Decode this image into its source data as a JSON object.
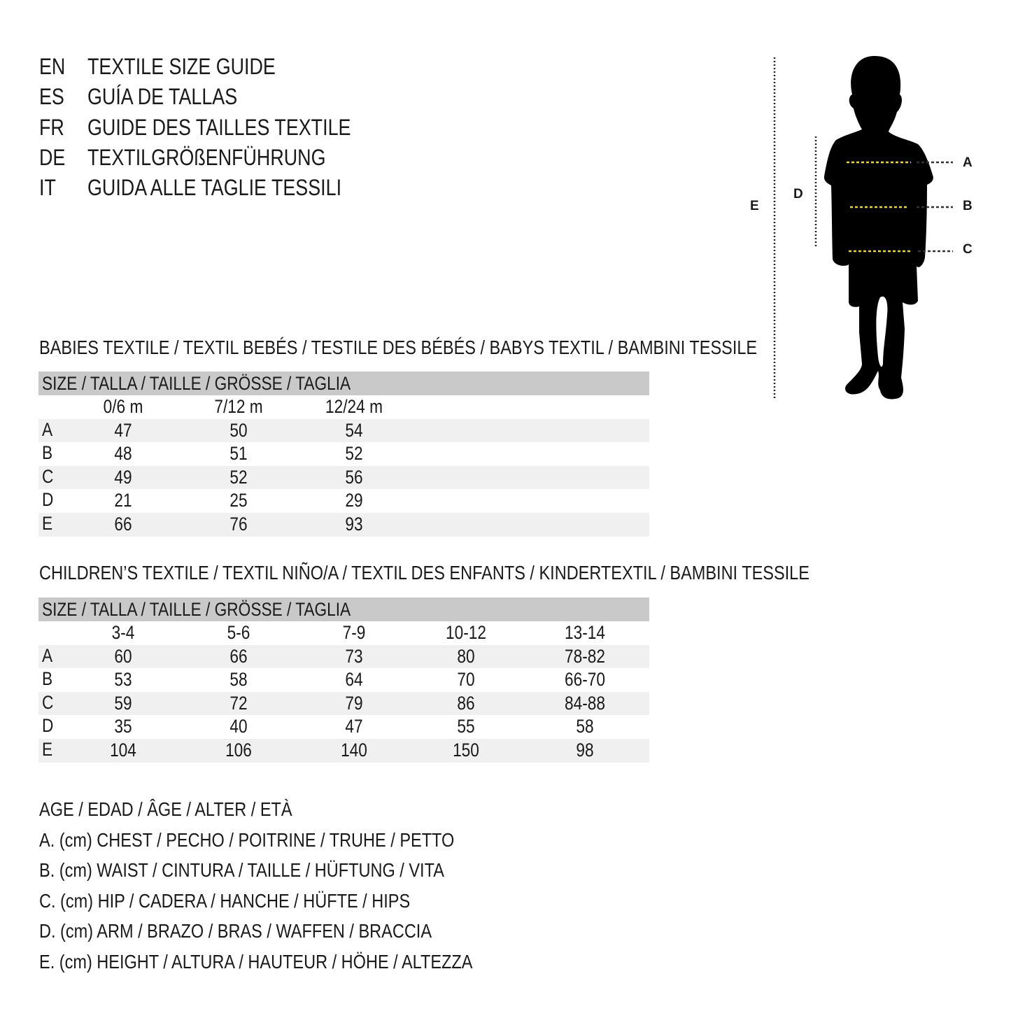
{
  "titles": [
    {
      "code": "EN",
      "text": "TEXTILE SIZE GUIDE"
    },
    {
      "code": "ES",
      "text": "GUÍA DE TALLAS"
    },
    {
      "code": "FR",
      "text": "GUIDE DES TAILLES TEXTILE"
    },
    {
      "code": "DE",
      "text": "TEXTILGRÖßENFÜHRUNG"
    },
    {
      "code": "IT",
      "text": "GUIDA ALLE TAGLIE TESSILI"
    }
  ],
  "figure": {
    "labels": {
      "a": "A",
      "b": "B",
      "c": "C",
      "d": "D",
      "e": "E"
    },
    "silhouette_color": "#000000",
    "measure_line_color": "#e8d44a"
  },
  "babies": {
    "title": "BABIES TEXTILE / TEXTIL BEBÉS / TESTILE DES BÉBÉS / BABYS TEXTIL / BAMBINI TESSILE",
    "header": "SIZE / TALLA / TAILLE / GRÖSSE / TAGLIA",
    "columns": [
      "0/6 m",
      "7/12 m",
      "12/24 m"
    ],
    "rows": [
      {
        "label": "A",
        "values": [
          "47",
          "50",
          "54"
        ]
      },
      {
        "label": "B",
        "values": [
          "48",
          "51",
          "52"
        ]
      },
      {
        "label": "C",
        "values": [
          "49",
          "52",
          "56"
        ]
      },
      {
        "label": "D",
        "values": [
          "21",
          "25",
          "29"
        ]
      },
      {
        "label": "E",
        "values": [
          "66",
          "76",
          "93"
        ]
      }
    ]
  },
  "children": {
    "title": "CHILDREN’S TEXTILE / TEXTIL NIÑO/A / TEXTIL DES ENFANTS / KINDERTEXTIL / BAMBINI TESSILE",
    "header": "SIZE / TALLA / TAILLE / GRÖSSE / TAGLIA",
    "columns": [
      "3-4",
      "5-6",
      "7-9",
      "10-12",
      "13-14"
    ],
    "rows": [
      {
        "label": "A",
        "values": [
          "60",
          "66",
          "73",
          "80",
          "78-82"
        ]
      },
      {
        "label": "B",
        "values": [
          "53",
          "58",
          "64",
          "70",
          "66-70"
        ]
      },
      {
        "label": "C",
        "values": [
          "59",
          "72",
          "79",
          "86",
          "84-88"
        ]
      },
      {
        "label": "D",
        "values": [
          "35",
          "40",
          "47",
          "55",
          "58"
        ]
      },
      {
        "label": "E",
        "values": [
          "104",
          "106",
          "140",
          "150",
          "98"
        ]
      }
    ]
  },
  "legend": [
    "AGE / EDAD / ÂGE / ALTER / ETÀ",
    "A. (cm) CHEST / PECHO / POITRINE / TRUHE / PETTO",
    "B. (cm) WAIST / CINTURA / TAILLE / HÜFTUNG / VITA",
    "C. (cm) HIP / CADERA / HANCHE / HÜFTE / HIPS",
    "D. (cm) ARM / BRAZO / BRAS / WAFFEN / BRACCIA",
    "E. (cm) HEIGHT / ALTURA / HAUTEUR / HÖHE / ALTEZZA"
  ]
}
